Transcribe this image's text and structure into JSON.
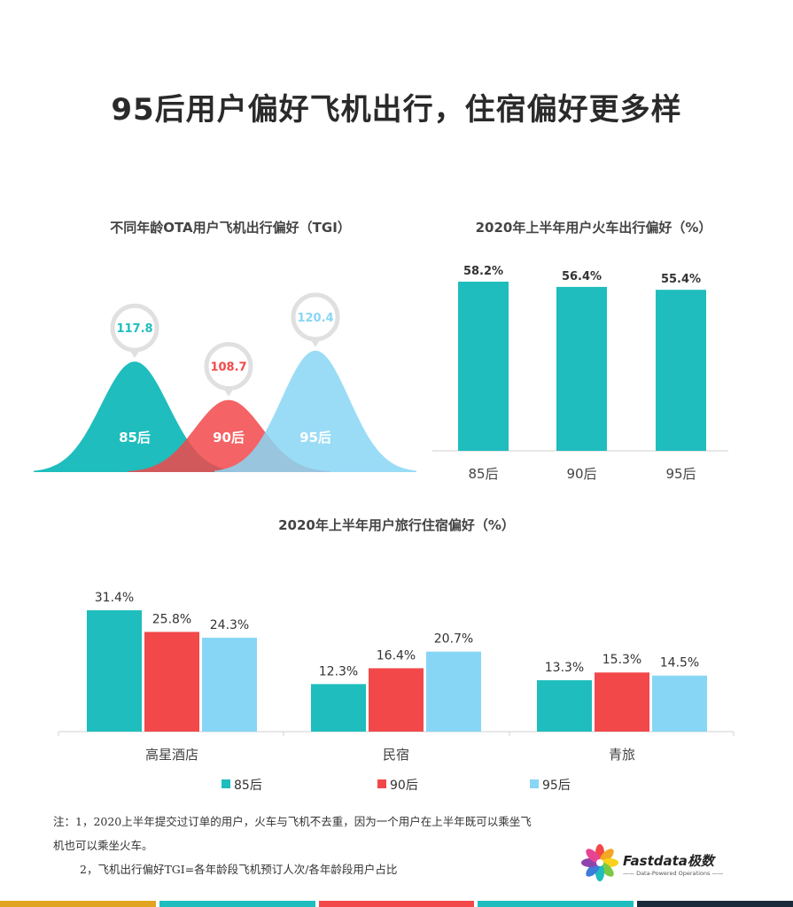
{
  "page": {
    "title": "95后用户偏好飞机出行，住宿偏好更多样"
  },
  "colors": {
    "teal": "#1fbdbd",
    "red": "#f2484a",
    "light_blue": "#88d6f5",
    "bubble": "#e0e0e0"
  },
  "notes": {
    "line1": "注：1，2020上半年提交过订单的用户，火车与飞机不去重，因为一个用户在上半年既可以乘坐飞",
    "line2": "机也可以乘坐火车。",
    "line3": "2，飞机出行偏好TGI=各年龄段飞机预订人次/各年龄段用户占比"
  },
  "logo": {
    "name": "Fastdata极数",
    "tagline": "—— Data-Powered Operations ——"
  },
  "footer_colors": [
    "#e0a420",
    "#1fbdbd",
    "#f2484a",
    "#1fbdbd",
    "#1a2a3a"
  ],
  "chart_data": [
    {
      "type": "area",
      "title": "不同年龄OTA用户飞机出行偏好（TGI）",
      "categories": [
        "85后",
        "90后",
        "95后"
      ],
      "values": [
        117.8,
        108.7,
        120.4
      ],
      "value_labels": [
        "117.8",
        "108.7",
        "120.4"
      ],
      "colors": [
        "#1fbdbd",
        "#f2484a",
        "#88d6f5"
      ]
    },
    {
      "type": "bar",
      "title": "2020年上半年用户火车出行偏好（%）",
      "categories": [
        "85后",
        "90后",
        "95后"
      ],
      "values": [
        58.2,
        56.4,
        55.4
      ],
      "value_labels": [
        "58.2%",
        "56.4%",
        "55.4%"
      ],
      "ylim": [
        0,
        60
      ],
      "color": "#1fbdbd"
    },
    {
      "type": "bar",
      "title": "2020年上半年用户旅行住宿偏好（%）",
      "categories": [
        "高星酒店",
        "民宿",
        "青旅"
      ],
      "series": [
        {
          "name": "85后",
          "values": [
            31.4,
            12.3,
            13.3
          ],
          "labels": [
            "31.4%",
            "12.3%",
            "13.3%"
          ],
          "color": "#1fbdbd"
        },
        {
          "name": "90后",
          "values": [
            25.8,
            16.4,
            15.3
          ],
          "labels": [
            "25.8%",
            "16.4%",
            "15.3%"
          ],
          "color": "#f2484a"
        },
        {
          "name": "95后",
          "values": [
            24.3,
            20.7,
            14.5
          ],
          "labels": [
            "24.3%",
            "20.7%",
            "14.5%"
          ],
          "color": "#88d6f5"
        }
      ],
      "ylim": [
        0,
        35
      ],
      "legend": "bottom"
    }
  ]
}
